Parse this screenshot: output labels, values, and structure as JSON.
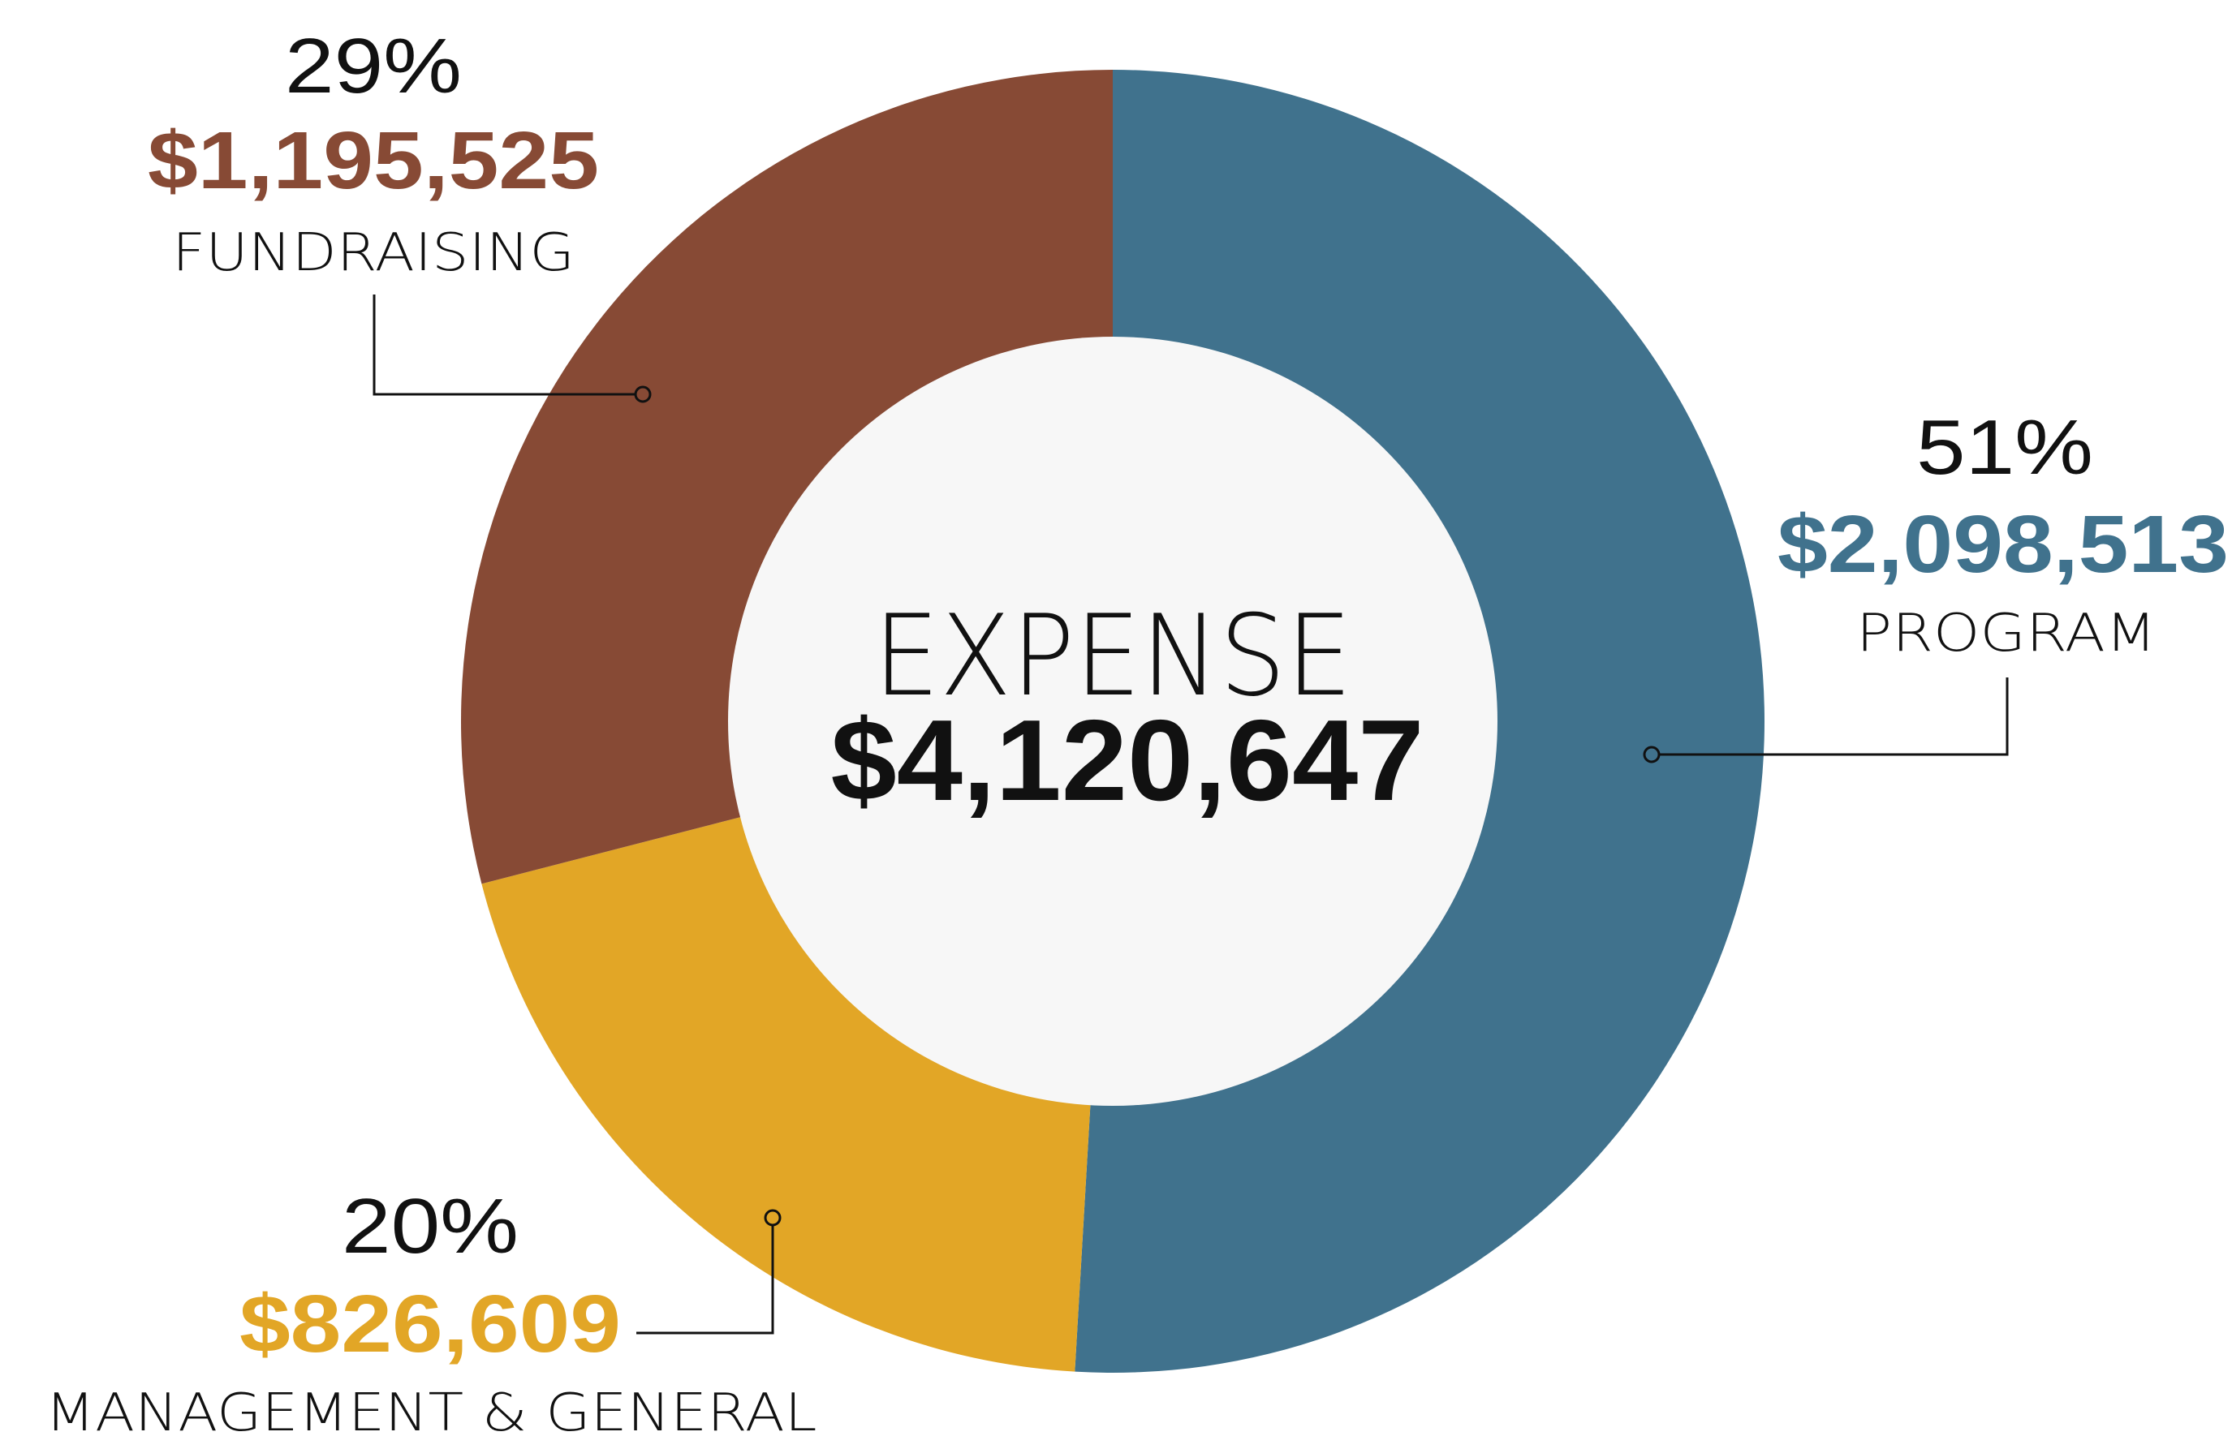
{
  "chart_data": {
    "type": "pie",
    "variant": "donut",
    "center_title": "EXPENSE",
    "center_total": "$4,120,647",
    "total_value": 4120647,
    "slices": [
      {
        "name": "PROGRAM",
        "value": 2098513,
        "value_label": "$2,098,513",
        "percent_label": "51%",
        "color": "#40728d"
      },
      {
        "name": "MANAGEMENT & GENERAL",
        "value": 826609,
        "value_label": "$826,609",
        "percent_label": "20%",
        "color": "#e2a626"
      },
      {
        "name": "FUNDRAISING",
        "value": 1195525,
        "value_label": "$1,195,525",
        "percent_label": "29%",
        "color": "#874a35"
      }
    ],
    "start_angle": "top",
    "direction": "clockwise",
    "center_fill": "#f7f7f7"
  }
}
